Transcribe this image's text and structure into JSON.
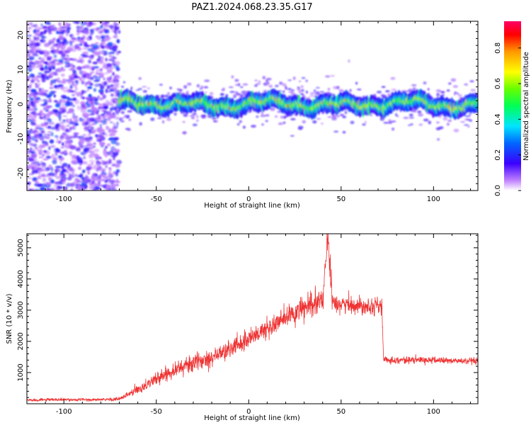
{
  "figure_title": "PAZ1.2024.068.23.35.G17",
  "chart_data": [
    {
      "type": "heatmap",
      "xlabel": "Height of straight line (km)",
      "ylabel": "Frequency (Hz)",
      "xlim": [
        -120,
        124
      ],
      "ylim": [
        -25,
        24
      ],
      "xticks": [
        -100,
        -50,
        0,
        50,
        100
      ],
      "yticks": [
        -20,
        -10,
        0,
        10,
        20
      ],
      "colorbar": {
        "label": "Normalized spectral amplitude",
        "range": [
          0,
          0.95
        ],
        "ticks": [
          0.0,
          0.2,
          0.4,
          0.6,
          0.8
        ],
        "colormap": "gist_rainbow_r"
      },
      "regions": [
        {
          "x_range": [
            -120,
            -70
          ],
          "frequency_range": [
            -25,
            24
          ],
          "amplitude_range": [
            0.05,
            0.25
          ],
          "description_of_pattern": "noise"
        },
        {
          "x_range": [
            -70,
            124
          ],
          "frequency_center": 0,
          "frequency_halfwidth": 3,
          "amplitude_range": [
            0.1,
            0.9
          ]
        }
      ],
      "grid": false
    },
    {
      "type": "line",
      "xlabel": "Height of straight line (km)",
      "ylabel": "SNR (10 * v/v)",
      "xlim": [
        -120,
        124
      ],
      "ylim": [
        0,
        5450
      ],
      "xticks": [
        -100,
        -50,
        0,
        50,
        100
      ],
      "yticks": [
        1000,
        2000,
        3000,
        4000,
        5000
      ],
      "series": [
        {
          "color": "#ee3333",
          "x": [
            -120,
            -100,
            -80,
            -70,
            -60,
            -50,
            -40,
            -30,
            -20,
            -10,
            0,
            10,
            20,
            30,
            40,
            43,
            45,
            50,
            60,
            72,
            73,
            80,
            90,
            100,
            110,
            124
          ],
          "y": [
            120,
            130,
            130,
            150,
            450,
            800,
            1100,
            1300,
            1500,
            1750,
            2100,
            2400,
            2750,
            3050,
            3300,
            5450,
            3300,
            3200,
            3150,
            3150,
            1400,
            1400,
            1400,
            1400,
            1380,
            1350
          ],
          "noise": [
            40,
            40,
            40,
            60,
            150,
            180,
            220,
            250,
            250,
            280,
            300,
            320,
            350,
            350,
            400,
            300,
            400,
            250,
            250,
            250,
            100,
            100,
            100,
            100,
            100,
            100
          ]
        }
      ],
      "grid": false
    }
  ]
}
